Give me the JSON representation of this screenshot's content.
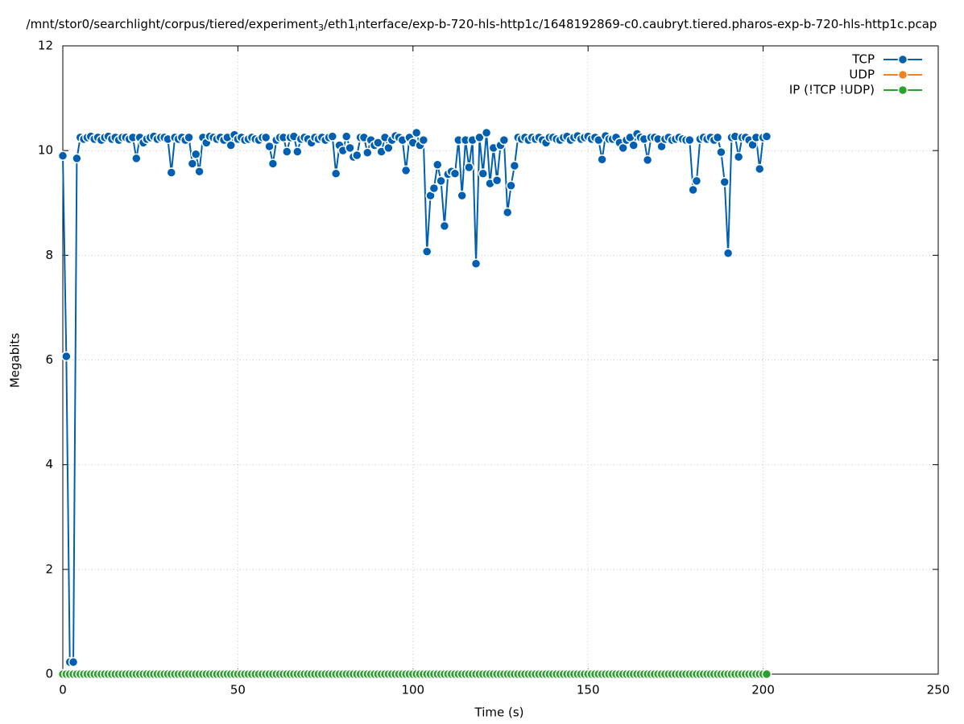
{
  "chart_data": {
    "type": "line",
    "title_parts": [
      "/mnt/stor0/searchlight/corpus/tiered/experiment",
      "3",
      "/eth1",
      "i",
      "nterface/exp-b-720-hls-http1c/1648192869-c0.caubryt.tiered.pharos-exp-b-720-hls-http1c.pcap"
    ],
    "xlabel": "Time (s)",
    "ylabel": "Megabits",
    "xlim": [
      0,
      250
    ],
    "xticks": [
      0,
      50,
      100,
      150,
      200,
      250
    ],
    "ylim": [
      0,
      12
    ],
    "yticks": [
      0,
      2,
      4,
      6,
      8,
      10,
      12
    ],
    "grid": true,
    "legend": "top-right",
    "x": [
      0,
      1,
      2,
      3,
      4,
      5,
      6,
      7,
      8,
      9,
      10,
      11,
      12,
      13,
      14,
      15,
      16,
      17,
      18,
      19,
      20,
      21,
      22,
      23,
      24,
      25,
      26,
      27,
      28,
      29,
      30,
      31,
      32,
      33,
      34,
      35,
      36,
      37,
      38,
      39,
      40,
      41,
      42,
      43,
      44,
      45,
      46,
      47,
      48,
      49,
      50,
      51,
      52,
      53,
      54,
      55,
      56,
      57,
      58,
      59,
      60,
      61,
      62,
      63,
      64,
      65,
      66,
      67,
      68,
      69,
      70,
      71,
      72,
      73,
      74,
      75,
      76,
      77,
      78,
      79,
      80,
      81,
      82,
      83,
      84,
      85,
      86,
      87,
      88,
      89,
      90,
      91,
      92,
      93,
      94,
      95,
      96,
      97,
      98,
      99,
      100,
      101,
      102,
      103,
      104,
      105,
      106,
      107,
      108,
      109,
      110,
      111,
      112,
      113,
      114,
      115,
      116,
      117,
      118,
      119,
      120,
      121,
      122,
      123,
      124,
      125,
      126,
      127,
      128,
      129,
      130,
      131,
      132,
      133,
      134,
      135,
      136,
      137,
      138,
      139,
      140,
      141,
      142,
      143,
      144,
      145,
      146,
      147,
      148,
      149,
      150,
      151,
      152,
      153,
      154,
      155,
      156,
      157,
      158,
      159,
      160,
      161,
      162,
      163,
      164,
      165,
      166,
      167,
      168,
      169,
      170,
      171,
      172,
      173,
      174,
      175,
      176,
      177,
      178,
      179,
      180,
      181,
      182,
      183,
      184,
      185,
      186,
      187,
      188,
      189,
      190,
      191,
      192,
      193,
      194,
      195,
      196,
      197,
      198,
      199,
      200,
      201
    ],
    "series": [
      {
        "name": "TCP",
        "color": "#005fb0",
        "values": [
          9.9,
          6.07,
          0.23,
          0.23,
          9.85,
          10.25,
          10.22,
          10.25,
          10.27,
          10.22,
          10.25,
          10.2,
          10.25,
          10.27,
          10.22,
          10.25,
          10.2,
          10.25,
          10.25,
          10.22,
          10.25,
          9.85,
          10.25,
          10.15,
          10.22,
          10.25,
          10.27,
          10.22,
          10.25,
          10.25,
          10.22,
          9.58,
          10.25,
          10.22,
          10.25,
          10.2,
          10.25,
          9.75,
          9.93,
          9.6,
          10.25,
          10.15,
          10.27,
          10.25,
          10.22,
          10.25,
          10.2,
          10.25,
          10.1,
          10.3,
          10.22,
          10.25,
          10.2,
          10.22,
          10.25,
          10.22,
          10.2,
          10.25,
          10.25,
          10.08,
          9.75,
          10.2,
          10.25,
          10.25,
          9.98,
          10.25,
          10.27,
          9.98,
          10.22,
          10.25,
          10.22,
          10.15,
          10.25,
          10.22,
          10.25,
          10.2,
          10.25,
          10.27,
          9.56,
          10.1,
          10.0,
          10.27,
          10.05,
          9.88,
          9.91,
          10.25,
          10.25,
          9.96,
          10.2,
          10.1,
          10.15,
          9.98,
          10.25,
          10.05,
          10.2,
          10.28,
          10.25,
          10.2,
          9.62,
          10.25,
          10.15,
          10.34,
          10.1,
          10.2,
          8.07,
          9.14,
          9.28,
          9.73,
          9.42,
          8.56,
          9.55,
          9.6,
          9.56,
          10.2,
          9.14,
          10.2,
          9.68,
          10.2,
          7.84,
          10.25,
          9.56,
          10.34,
          9.37,
          10.05,
          9.43,
          10.1,
          10.2,
          8.82,
          9.33,
          9.71,
          10.25,
          10.22,
          10.25,
          10.2,
          10.25,
          10.22,
          10.25,
          10.2,
          10.15,
          10.25,
          10.25,
          10.22,
          10.2,
          10.25,
          10.27,
          10.2,
          10.25,
          10.28,
          10.22,
          10.25,
          10.27,
          10.22,
          10.25,
          10.2,
          9.83,
          10.28,
          10.22,
          10.22,
          10.25,
          10.15,
          10.05,
          10.2,
          10.25,
          10.1,
          10.32,
          10.25,
          10.22,
          9.82,
          10.25,
          10.25,
          10.22,
          10.08,
          10.22,
          10.25,
          10.2,
          10.22,
          10.25,
          10.22,
          10.2,
          10.2,
          9.25,
          9.42,
          10.22,
          10.25,
          10.22,
          10.25,
          10.2,
          10.25,
          9.97,
          9.4,
          8.04,
          10.25,
          10.27,
          9.88,
          10.25,
          10.25,
          10.2,
          10.11,
          10.25,
          9.65,
          10.25,
          10.27
        ]
      },
      {
        "name": "UDP",
        "color": "#f58220",
        "values": [
          0,
          0,
          0,
          0,
          0,
          0,
          0,
          0,
          0,
          0,
          0,
          0,
          0,
          0,
          0,
          0,
          0,
          0,
          0,
          0,
          0,
          0,
          0,
          0,
          0,
          0,
          0,
          0,
          0,
          0,
          0,
          0,
          0,
          0,
          0,
          0,
          0,
          0,
          0,
          0,
          0,
          0,
          0,
          0,
          0,
          0,
          0,
          0,
          0,
          0,
          0,
          0,
          0,
          0,
          0,
          0,
          0,
          0,
          0,
          0,
          0,
          0,
          0,
          0,
          0,
          0,
          0,
          0,
          0,
          0,
          0,
          0,
          0,
          0,
          0,
          0,
          0,
          0,
          0,
          0,
          0,
          0,
          0,
          0,
          0,
          0,
          0,
          0,
          0,
          0,
          0,
          0,
          0,
          0,
          0,
          0,
          0,
          0,
          0,
          0,
          0,
          0,
          0,
          0,
          0,
          0,
          0,
          0,
          0,
          0,
          0,
          0,
          0,
          0,
          0,
          0,
          0,
          0,
          0,
          0,
          0,
          0,
          0,
          0,
          0,
          0,
          0,
          0,
          0,
          0,
          0,
          0,
          0,
          0,
          0,
          0,
          0,
          0,
          0,
          0,
          0,
          0,
          0,
          0,
          0,
          0,
          0,
          0,
          0,
          0,
          0,
          0,
          0,
          0,
          0,
          0,
          0,
          0,
          0,
          0,
          0,
          0,
          0,
          0,
          0,
          0,
          0,
          0,
          0,
          0,
          0,
          0,
          0,
          0,
          0,
          0,
          0,
          0,
          0,
          0,
          0,
          0,
          0,
          0,
          0,
          0,
          0,
          0,
          0,
          0,
          0,
          0,
          0,
          0,
          0,
          0,
          0,
          0,
          0,
          0,
          0,
          0
        ]
      },
      {
        "name": "IP (!TCP  !UDP)",
        "color": "#2ca02c",
        "values": [
          0,
          0,
          0,
          0,
          0,
          0,
          0,
          0,
          0,
          0,
          0,
          0,
          0,
          0,
          0,
          0,
          0,
          0,
          0,
          0,
          0,
          0,
          0,
          0,
          0,
          0,
          0,
          0,
          0,
          0,
          0,
          0,
          0,
          0,
          0,
          0,
          0,
          0,
          0,
          0,
          0,
          0,
          0,
          0,
          0,
          0,
          0,
          0,
          0,
          0,
          0,
          0,
          0,
          0,
          0,
          0,
          0,
          0,
          0,
          0,
          0,
          0,
          0,
          0,
          0,
          0,
          0,
          0,
          0,
          0,
          0,
          0,
          0,
          0,
          0,
          0,
          0,
          0,
          0,
          0,
          0,
          0,
          0,
          0,
          0,
          0,
          0,
          0,
          0,
          0,
          0,
          0,
          0,
          0,
          0,
          0,
          0,
          0,
          0,
          0,
          0,
          0,
          0,
          0,
          0,
          0,
          0,
          0,
          0,
          0,
          0,
          0,
          0,
          0,
          0,
          0,
          0,
          0,
          0,
          0,
          0,
          0,
          0,
          0,
          0,
          0,
          0,
          0,
          0,
          0,
          0,
          0,
          0,
          0,
          0,
          0,
          0,
          0,
          0,
          0,
          0,
          0,
          0,
          0,
          0,
          0,
          0,
          0,
          0,
          0,
          0,
          0,
          0,
          0,
          0,
          0,
          0,
          0,
          0,
          0,
          0,
          0,
          0,
          0,
          0,
          0,
          0,
          0,
          0,
          0,
          0,
          0,
          0,
          0,
          0,
          0,
          0,
          0,
          0,
          0,
          0,
          0,
          0,
          0,
          0,
          0,
          0,
          0,
          0,
          0,
          0,
          0,
          0,
          0,
          0,
          0,
          0,
          0,
          0,
          0,
          0,
          0
        ]
      }
    ]
  }
}
